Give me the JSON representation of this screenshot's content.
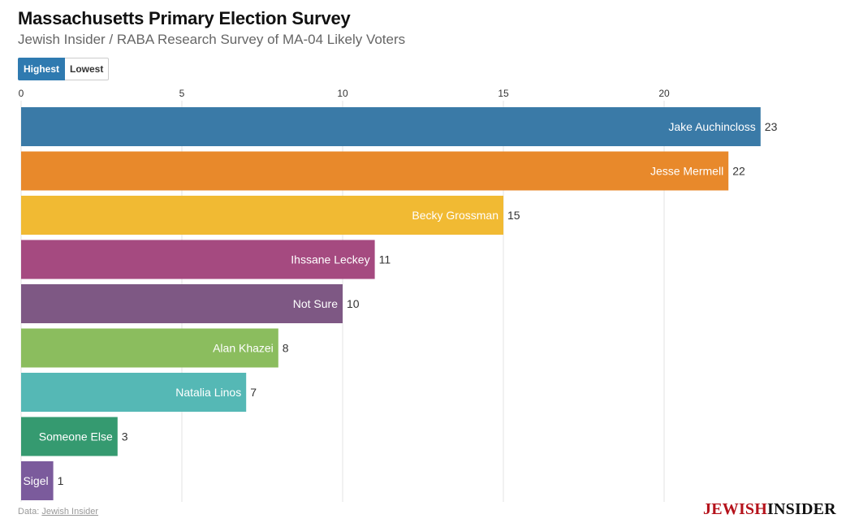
{
  "header": {
    "title": "Massachusetts Primary Election Survey",
    "subtitle": "Jewish Insider / RABA Research Survey of MA-04 Likely Voters"
  },
  "controls": {
    "highest_label": "Highest",
    "lowest_label": "Lowest",
    "active": "highest"
  },
  "footer": {
    "data_label": "Data: ",
    "source_link": "Jewish Insider"
  },
  "logo": {
    "part1": "Jewish",
    "part2": "Insider"
  },
  "chart_data": {
    "type": "bar",
    "orientation": "horizontal",
    "title": "Massachusetts Primary Election Survey",
    "subtitle": "Jewish Insider / RABA Research Survey of MA-04 Likely Voters",
    "xlim": [
      0,
      23
    ],
    "xticks": [
      0,
      5,
      10,
      15,
      20
    ],
    "grid": true,
    "categories": [
      "Jake Auchincloss",
      "Jesse Mermell",
      "Becky Grossman",
      "Ihssane Leckey",
      "Not Sure",
      "Alan Khazei",
      "Natalia Linos",
      "Someone Else",
      "Sigel"
    ],
    "values": [
      23,
      22,
      15,
      11,
      10,
      8,
      7,
      3,
      1
    ],
    "colors": [
      "#3a7aa7",
      "#e8892b",
      "#f1ba33",
      "#a54a80",
      "#7e5884",
      "#8bbd5e",
      "#55b8b5",
      "#359a70",
      "#7b5b9c"
    ]
  }
}
